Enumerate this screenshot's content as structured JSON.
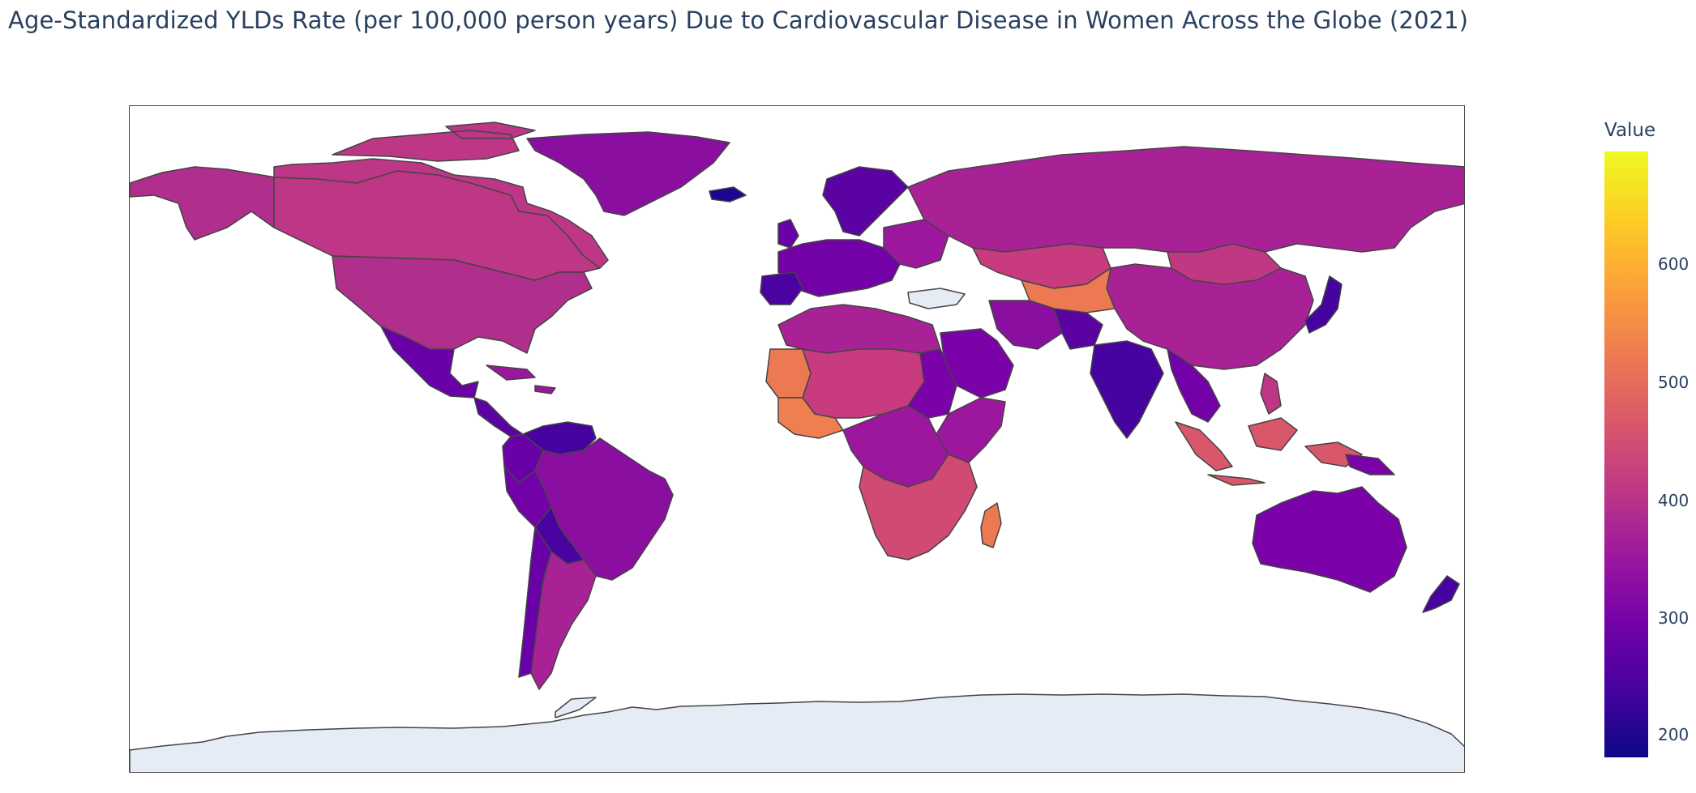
{
  "title": "Age-Standardized YLDs Rate (per 100,000 person years) Due to Cardiovascular Disease in Women Across the Globe (2021)",
  "colorbar": {
    "title": "Value",
    "range": [
      180,
      700
    ],
    "ticks": [
      "200",
      "300",
      "400",
      "500",
      "600"
    ],
    "colorscale": [
      "#0d0887",
      "#46039f",
      "#7201a8",
      "#9c179e",
      "#bd3786",
      "#d8576b",
      "#ed7953",
      "#fb9f3a",
      "#fdca26",
      "#f0f921"
    ]
  },
  "map": {
    "projection": "equirectangular",
    "land_no_data_color": "#e5ecf6",
    "border_color": "#444444",
    "background_color": "#ffffff",
    "regions": [
      {
        "name": "Canada",
        "value": 385
      },
      {
        "name": "United States",
        "value": 375
      },
      {
        "name": "Alaska",
        "value": 380
      },
      {
        "name": "Greenland",
        "value": 330
      },
      {
        "name": "Mexico",
        "value": 310
      },
      {
        "name": "Brazil",
        "value": 330
      },
      {
        "name": "Argentina",
        "value": 370
      },
      {
        "name": "Venezuela",
        "value": 280
      },
      {
        "name": "Colombia",
        "value": 300
      },
      {
        "name": "Russia",
        "value": 385
      },
      {
        "name": "China",
        "value": 395
      },
      {
        "name": "Kazakhstan",
        "value": 420
      },
      {
        "name": "Mongolia",
        "value": 420
      },
      {
        "name": "India",
        "value": 280
      },
      {
        "name": "Australia",
        "value": 325
      },
      {
        "name": "Indonesia",
        "value": 440
      },
      {
        "name": "Madagascar",
        "value": 510
      },
      {
        "name": "South Africa",
        "value": 455
      },
      {
        "name": "Mauritania",
        "value": 510
      },
      {
        "name": "Western Europe",
        "value": 330
      },
      {
        "name": "North Africa",
        "value": 380
      },
      {
        "name": "Sahel",
        "value": 440
      },
      {
        "name": "Saudi Arabia",
        "value": 330
      },
      {
        "name": "Antarctica",
        "value": null
      }
    ]
  }
}
